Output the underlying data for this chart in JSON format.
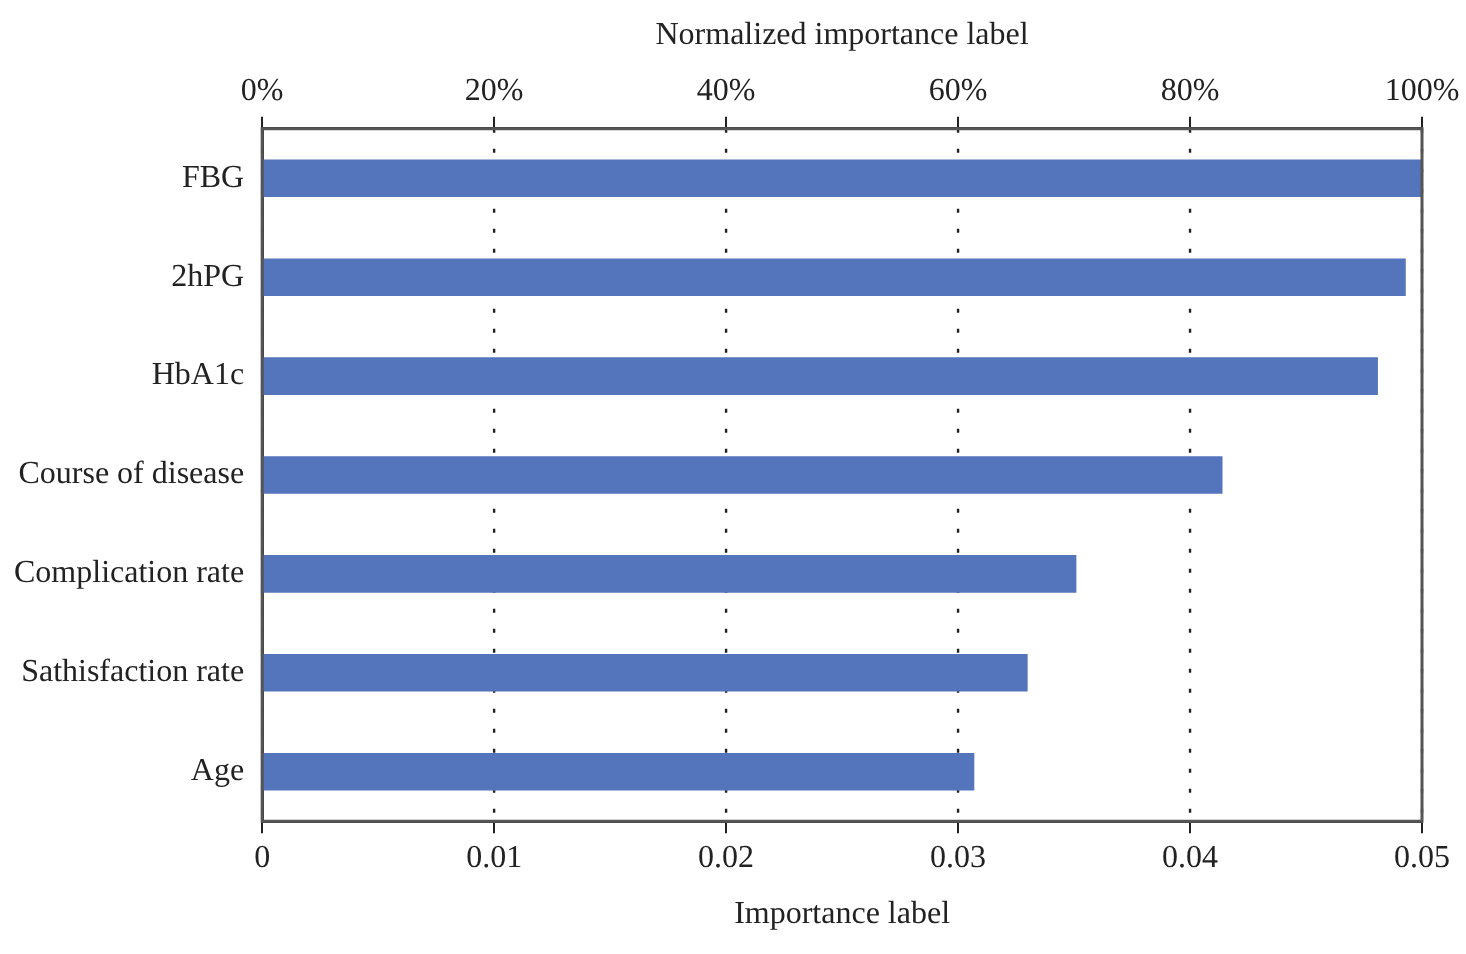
{
  "chart_data": {
    "type": "bar",
    "orientation": "horizontal",
    "xlabel": "Importance label",
    "x2label": "Normalized importance label",
    "categories": [
      "FBG",
      "2hPG",
      "HbA1c",
      "Course of disease",
      "Complication rate",
      "Sathisfaction rate",
      "Age"
    ],
    "values": [
      0.05,
      0.0493,
      0.0481,
      0.0414,
      0.0351,
      0.033,
      0.0307
    ],
    "color": "#5474bb",
    "xlim": [
      0,
      0.05
    ],
    "xticks": [
      0,
      0.01,
      0.02,
      0.03,
      0.04,
      0.05
    ],
    "x2lim": [
      0,
      100
    ],
    "x2ticks": [
      {
        "value": 0,
        "label": "0%"
      },
      {
        "value": 20,
        "label": "20%"
      },
      {
        "value": 40,
        "label": "40%"
      },
      {
        "value": 60,
        "label": "60%"
      },
      {
        "value": 80,
        "label": "80%"
      },
      {
        "value": 100,
        "label": "100%"
      }
    ],
    "grid": "x",
    "legend": false
  }
}
